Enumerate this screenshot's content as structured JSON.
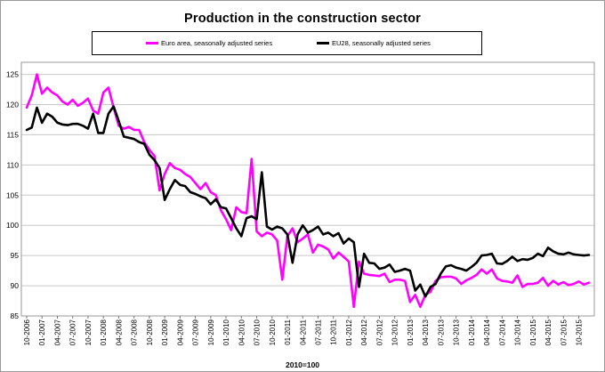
{
  "chart_data": {
    "type": "line",
    "title": "Production in the construction sector",
    "xlabel": "2010=100",
    "ylabel": "",
    "ylim": [
      85,
      127
    ],
    "yticks": [
      85,
      90,
      95,
      100,
      105,
      110,
      115,
      120,
      125
    ],
    "grid": true,
    "legend_position": "top",
    "x_tick_labels": [
      "10-2006",
      "01-2007",
      "04-2007",
      "07-2007",
      "10-2007",
      "01-2008",
      "04-2008",
      "07-2008",
      "10-2008",
      "01-2009",
      "04-2009",
      "07-2009",
      "10-2009",
      "01-2010",
      "04-2010",
      "07-2010",
      "10-2010",
      "01-2011",
      "04-2011",
      "07-2011",
      "10-2011",
      "01-2012",
      "04-2012",
      "07-2012",
      "10-2012",
      "01-2013",
      "04-2013",
      "07-2013",
      "10-2013",
      "01-2014",
      "04-2014",
      "07-2014",
      "10-2014",
      "01-2015",
      "04-2015",
      "07-2015",
      "10-2015"
    ],
    "series": [
      {
        "name": "Euro area, seasonally adjusted series",
        "color": "#ff00ff",
        "values": [
          119.5,
          121.5,
          125.0,
          121.8,
          122.8,
          122.0,
          121.5,
          120.5,
          120.0,
          120.8,
          119.8,
          120.3,
          121.0,
          119.0,
          118.5,
          122.0,
          122.8,
          119.5,
          116.5,
          116.0,
          116.3,
          115.8,
          115.8,
          113.8,
          112.5,
          111.5,
          105.8,
          108.5,
          110.3,
          109.5,
          109.2,
          108.5,
          108.0,
          107.0,
          106.0,
          107.0,
          105.5,
          105.0,
          102.5,
          101.0,
          99.2,
          103.0,
          102.2,
          102.0,
          111.0,
          99.0,
          98.2,
          98.8,
          98.5,
          97.5,
          91.0,
          98.2,
          99.5,
          97.2,
          97.8,
          98.5,
          95.5,
          96.8,
          96.5,
          96.0,
          94.5,
          95.5,
          94.8,
          94.0,
          86.5,
          94.0,
          92.0,
          91.8,
          91.7,
          91.6,
          92.0,
          90.6,
          91.0,
          91.0,
          90.8,
          87.3,
          88.5,
          86.5,
          88.5,
          89.0,
          90.8,
          91.4,
          91.5,
          91.5,
          91.2,
          90.3,
          90.9,
          91.3,
          91.8,
          92.7,
          92.0,
          92.7,
          91.2,
          90.8,
          90.7,
          90.5,
          91.7,
          89.8,
          90.3,
          90.3,
          90.5,
          91.3,
          90.0,
          90.8,
          90.2,
          90.6,
          90.1,
          90.3,
          90.7,
          90.2,
          90.5
        ]
      },
      {
        "name": "EU28, seasonally adjusted series",
        "color": "#000000",
        "values": [
          115.8,
          116.2,
          119.5,
          117.0,
          118.5,
          118.0,
          117.0,
          116.7,
          116.6,
          116.8,
          116.8,
          116.5,
          116.0,
          118.5,
          115.3,
          115.3,
          118.5,
          119.7,
          117.3,
          114.7,
          114.5,
          114.3,
          113.8,
          113.5,
          111.7,
          110.8,
          109.5,
          104.2,
          106.0,
          107.5,
          106.7,
          106.5,
          105.5,
          105.2,
          104.8,
          104.5,
          103.5,
          104.3,
          103.0,
          102.8,
          101.2,
          99.5,
          98.2,
          101.2,
          101.5,
          101.0,
          108.8,
          99.8,
          99.3,
          99.8,
          99.5,
          98.5,
          93.8,
          98.5,
          100.0,
          98.8,
          99.2,
          99.8,
          98.5,
          98.8,
          98.2,
          98.7,
          97.0,
          97.8,
          97.2,
          89.8,
          95.3,
          93.8,
          93.7,
          92.8,
          93.0,
          93.5,
          92.3,
          92.5,
          92.8,
          92.5,
          89.2,
          90.2,
          88.2,
          89.8,
          90.3,
          92.0,
          93.2,
          93.4,
          93.0,
          92.8,
          92.5,
          93.1,
          93.8,
          95.0,
          95.1,
          95.3,
          93.7,
          93.6,
          94.1,
          94.8,
          94.1,
          94.4,
          94.3,
          94.6,
          95.3,
          94.9,
          96.3,
          95.7,
          95.3,
          95.2,
          95.5,
          95.2,
          95.1,
          95.0,
          95.1
        ]
      }
    ]
  }
}
